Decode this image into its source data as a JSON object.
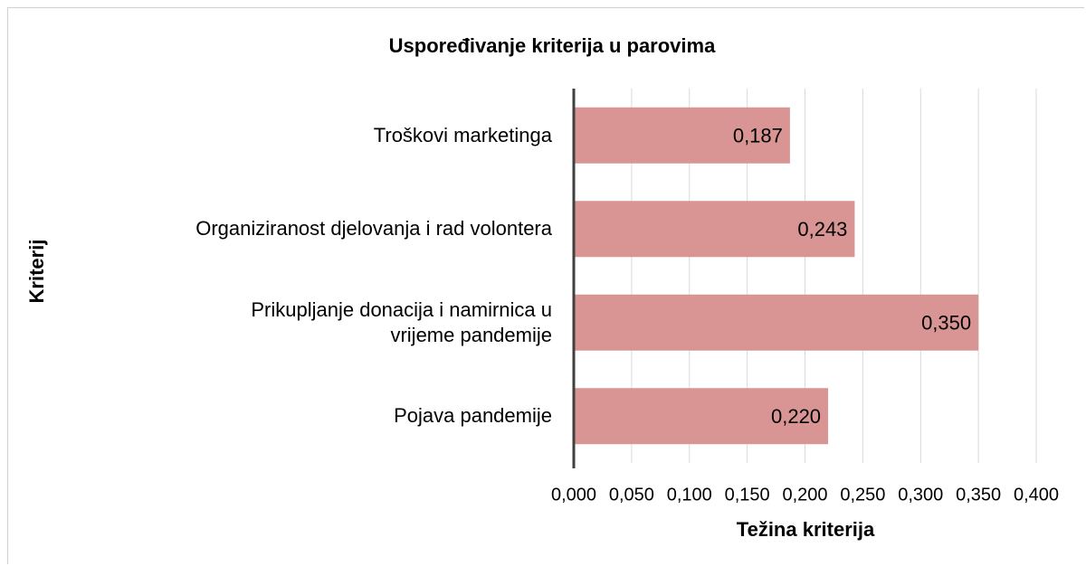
{
  "chart_data": {
    "type": "bar",
    "orientation": "horizontal",
    "title": "Uspoređivanje kriterija u parovima",
    "x_label": "Težina kriterija",
    "y_label": "Kriterij",
    "categories": [
      "Troškovi marketinga",
      "Organiziranost djelovanja i rad volontera",
      "Prikupljanje donacija i namirnica u\nvrijeme pandemije",
      "Pojava pandemije"
    ],
    "values": [
      0.187,
      0.243,
      0.35,
      0.22
    ],
    "value_labels": [
      "0,187",
      "0,243",
      "0,350",
      "0,220"
    ],
    "color": "#d99594",
    "xlim": [
      0,
      0.4
    ],
    "xticks": [
      {
        "value": 0,
        "label": "0,000"
      },
      {
        "value": 0.05,
        "label": "0,050"
      },
      {
        "value": 0.1,
        "label": "0,100"
      },
      {
        "value": 0.15,
        "label": "0,150"
      },
      {
        "value": 0.2,
        "label": "0,200"
      },
      {
        "value": 0.25,
        "label": "0,250"
      },
      {
        "value": 0.3,
        "label": "0,300"
      },
      {
        "value": 0.35,
        "label": "0,350"
      },
      {
        "value": 0.4,
        "label": "0,400"
      }
    ],
    "grid": true
  }
}
